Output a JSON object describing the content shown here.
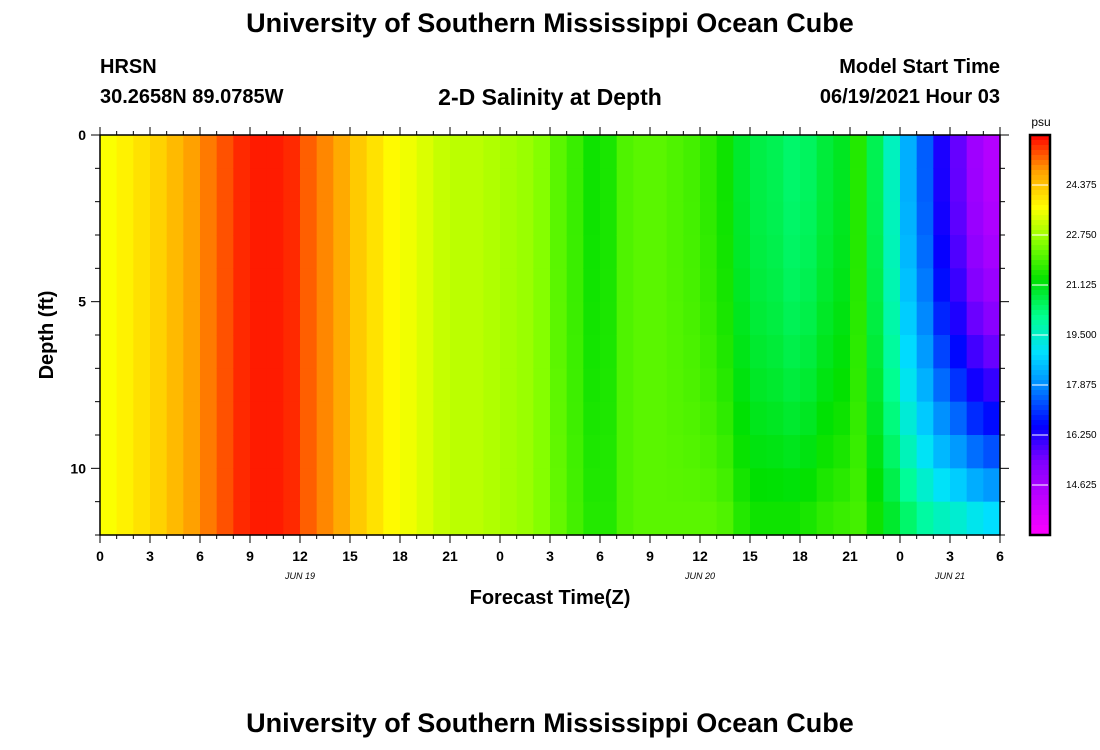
{
  "header": {
    "title": "University of Southern Mississippi Ocean Cube",
    "station": "HRSN",
    "coords": "30.2658N  89.0785W",
    "subtitle": "2-D Salinity at Depth",
    "model_start_label": "Model Start Time",
    "model_start_value": "06/19/2021 Hour 03"
  },
  "footer": {
    "title": "University of Southern Mississippi Ocean Cube"
  },
  "chart_data": {
    "type": "heatmap",
    "xlabel": "Forecast Time(Z)",
    "ylabel": "Depth (ft)",
    "x_range_hours": [
      0,
      54
    ],
    "x_ticks": [
      {
        "h": 0,
        "label": "0"
      },
      {
        "h": 3,
        "label": "3"
      },
      {
        "h": 6,
        "label": "6"
      },
      {
        "h": 9,
        "label": "9"
      },
      {
        "h": 12,
        "label": "12"
      },
      {
        "h": 15,
        "label": "15"
      },
      {
        "h": 18,
        "label": "18"
      },
      {
        "h": 21,
        "label": "21"
      },
      {
        "h": 24,
        "label": "0"
      },
      {
        "h": 27,
        "label": "3"
      },
      {
        "h": 30,
        "label": "6"
      },
      {
        "h": 33,
        "label": "9"
      },
      {
        "h": 36,
        "label": "12"
      },
      {
        "h": 39,
        "label": "15"
      },
      {
        "h": 42,
        "label": "18"
      },
      {
        "h": 45,
        "label": "21"
      },
      {
        "h": 48,
        "label": "0"
      },
      {
        "h": 51,
        "label": "3"
      },
      {
        "h": 54,
        "label": "6"
      }
    ],
    "date_labels": [
      {
        "h": 12,
        "label": "JUN 19"
      },
      {
        "h": 36,
        "label": "JUN 20"
      },
      {
        "h": 51,
        "label": "JUN 21"
      }
    ],
    "y_range_ft": [
      0,
      12
    ],
    "y_reversed": true,
    "y_ticks": [
      {
        "v": 0,
        "label": "0"
      },
      {
        "v": 5,
        "label": "5"
      },
      {
        "v": 10,
        "label": "10"
      }
    ],
    "colorbar": {
      "unit": "psu",
      "min": 13.0,
      "max": 26.0,
      "tick_labels": [
        "24.375",
        "22.750",
        "21.125",
        "19.500",
        "17.875",
        "16.250",
        "14.625"
      ],
      "colors": [
        "#ff00ff",
        "#c000ff",
        "#8000ff",
        "#0000ff",
        "#0080ff",
        "#00e0ff",
        "#00ff90",
        "#00e000",
        "#80ff00",
        "#ffff00",
        "#ffa000",
        "#ff0000"
      ]
    },
    "time_hours": [
      0,
      1,
      2,
      3,
      4,
      5,
      6,
      7,
      8,
      9,
      10,
      11,
      12,
      13,
      14,
      15,
      16,
      17,
      18,
      19,
      20,
      21,
      22,
      23,
      24,
      25,
      26,
      27,
      28,
      29,
      30,
      31,
      32,
      33,
      34,
      35,
      36,
      37,
      38,
      39,
      40,
      41,
      42,
      43,
      44,
      45,
      46,
      47,
      48,
      49,
      50,
      51,
      52,
      53,
      54
    ],
    "salinity_surface": [
      23.6,
      23.8,
      24.0,
      24.2,
      24.5,
      24.8,
      25.1,
      25.4,
      25.7,
      25.8,
      25.8,
      25.7,
      25.3,
      25.0,
      24.7,
      24.3,
      24.0,
      23.7,
      23.5,
      23.3,
      23.1,
      23.0,
      23.0,
      22.9,
      22.8,
      22.7,
      22.5,
      22.1,
      21.8,
      21.4,
      21.5,
      22.0,
      22.1,
      22.1,
      22.0,
      21.9,
      21.7,
      21.4,
      20.9,
      20.7,
      20.6,
      20.4,
      20.5,
      20.8,
      21.0,
      21.6,
      20.6,
      19.6,
      18.3,
      17.4,
      16.3,
      15.6,
      14.8,
      14.4,
      14.1
    ],
    "salinity_bottom": [
      23.6,
      23.8,
      24.0,
      24.2,
      24.5,
      24.8,
      25.1,
      25.4,
      25.7,
      25.8,
      25.8,
      25.7,
      25.3,
      25.0,
      24.7,
      24.3,
      24.0,
      23.7,
      23.5,
      23.3,
      23.1,
      23.0,
      23.0,
      22.9,
      22.8,
      22.7,
      22.5,
      22.2,
      21.9,
      21.6,
      21.6,
      22.0,
      22.1,
      22.1,
      22.1,
      22.1,
      22.1,
      22.0,
      21.6,
      21.4,
      21.4,
      21.4,
      21.5,
      21.7,
      21.8,
      21.9,
      21.4,
      20.9,
      20.4,
      19.9,
      19.6,
      19.4,
      19.1,
      18.9,
      18.7
    ]
  }
}
